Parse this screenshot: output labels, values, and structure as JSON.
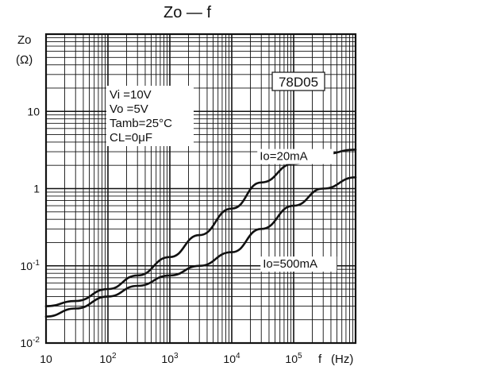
{
  "chart_data": {
    "type": "line",
    "title": "Zo — f",
    "ylabel": "Zo",
    "yunit": "(Ω)",
    "xlabel": "f",
    "xunit": "(Hz)",
    "xscale": "log",
    "yscale": "log",
    "xlim": [
      10,
      1000000
    ],
    "ylim": [
      0.01,
      100
    ],
    "grid": true,
    "x_ticks": [
      {
        "value": 10,
        "label": "10"
      },
      {
        "value": 100,
        "label": "10^2"
      },
      {
        "value": 1000,
        "label": "10^3"
      },
      {
        "value": 10000,
        "label": "10^4"
      },
      {
        "value": 100000,
        "label": "10^5"
      }
    ],
    "y_ticks": [
      {
        "value": 0.01,
        "label": "10^-2"
      },
      {
        "value": 0.1,
        "label": "10^-1"
      },
      {
        "value": 1,
        "label": "1"
      },
      {
        "value": 10,
        "label": "10"
      }
    ],
    "part_number": "78D05",
    "conditions": [
      "Vi =10V",
      "Vo =5V",
      "Tamb=25°C",
      "CL=0μF"
    ],
    "series": [
      {
        "name": "Io=20mA",
        "x": [
          10,
          30,
          100,
          300,
          1000,
          3000,
          10000,
          30000,
          100000,
          300000,
          1000000
        ],
        "y": [
          0.03,
          0.035,
          0.05,
          0.075,
          0.13,
          0.25,
          0.55,
          1.2,
          2.1,
          2.8,
          3.2
        ]
      },
      {
        "name": "Io=500mA",
        "x": [
          10,
          30,
          100,
          300,
          1000,
          3000,
          10000,
          30000,
          100000,
          300000,
          1000000
        ],
        "y": [
          0.022,
          0.028,
          0.04,
          0.055,
          0.075,
          0.1,
          0.15,
          0.3,
          0.6,
          1.0,
          1.4
        ]
      }
    ]
  }
}
